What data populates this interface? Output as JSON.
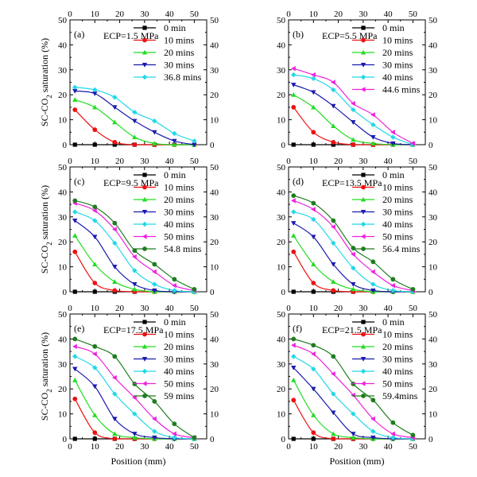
{
  "figure": {
    "xlabel": "Position (mm)",
    "ylabel_main": "SC-CO",
    "ylabel_sub": "2",
    "ylabel_rest": "  saturation (%)"
  },
  "chart_data": [
    {
      "type": "line",
      "panel_label": "(a)",
      "annotation": "ECP=1.5 MPa",
      "x": [
        2,
        10,
        18,
        26,
        34,
        42,
        50
      ],
      "xlim": [
        0,
        55
      ],
      "ylim": [
        0,
        50
      ],
      "xticks": [
        0,
        10,
        20,
        30,
        40,
        50
      ],
      "yticks": [
        0,
        10,
        20,
        30,
        40,
        50
      ],
      "legend_position": "top-right",
      "series": [
        {
          "name": "0 min",
          "color": "#000000",
          "marker": "square",
          "values": [
            0,
            0,
            0,
            0,
            0,
            0,
            0
          ]
        },
        {
          "name": "10 mins",
          "color": "#ee1111",
          "marker": "circle",
          "values": [
            14,
            6,
            1,
            0,
            0,
            0,
            0
          ]
        },
        {
          "name": "20 mins",
          "color": "#22dd22",
          "marker": "triangle-up",
          "values": [
            18,
            15,
            9,
            3,
            0.5,
            0,
            0
          ]
        },
        {
          "name": "30 mins",
          "color": "#1a1ab0",
          "marker": "triangle-down",
          "values": [
            21.5,
            20.5,
            15,
            9.5,
            5,
            1.5,
            0
          ]
        },
        {
          "name": "36.8 mins",
          "color": "#22d8e8",
          "marker": "diamond",
          "values": [
            23,
            22,
            19,
            13,
            9.5,
            4.5,
            1.5
          ]
        }
      ]
    },
    {
      "type": "line",
      "panel_label": "(b)",
      "annotation": "ECP=5.5 MPa",
      "x": [
        2,
        10,
        18,
        26,
        34,
        42,
        50
      ],
      "xlim": [
        0,
        55
      ],
      "ylim": [
        0,
        50
      ],
      "xticks": [
        0,
        10,
        20,
        30,
        40,
        50
      ],
      "yticks": [
        0,
        10,
        20,
        30,
        40,
        50
      ],
      "legend_position": "top-right",
      "series": [
        {
          "name": "0 min",
          "color": "#000000",
          "marker": "square",
          "values": [
            0,
            0,
            0,
            0,
            0,
            0,
            0
          ]
        },
        {
          "name": "10 mins",
          "color": "#ee1111",
          "marker": "circle",
          "values": [
            15,
            5,
            1,
            0,
            0,
            0,
            0
          ]
        },
        {
          "name": "20 mins",
          "color": "#22dd22",
          "marker": "triangle-up",
          "values": [
            20,
            15,
            7.5,
            2,
            0.5,
            0,
            0
          ]
        },
        {
          "name": "30 mins",
          "color": "#1a1ab0",
          "marker": "triangle-down",
          "values": [
            24,
            21,
            15.5,
            9,
            3,
            0.5,
            0
          ]
        },
        {
          "name": "40 mins",
          "color": "#22d8e8",
          "marker": "diamond",
          "values": [
            28,
            26.5,
            22,
            14,
            8,
            3,
            0
          ]
        },
        {
          "name": "44.6 mins",
          "color": "#ee22dd",
          "marker": "triangle-left",
          "values": [
            30.5,
            28,
            25,
            16.5,
            12,
            5,
            0.5
          ]
        }
      ]
    },
    {
      "type": "line",
      "panel_label": "(c)",
      "annotation": "ECP=9.5 MPa",
      "x": [
        2,
        10,
        18,
        26,
        34,
        42,
        50
      ],
      "xlim": [
        0,
        55
      ],
      "ylim": [
        0,
        50
      ],
      "xticks": [
        0,
        10,
        20,
        30,
        40,
        50
      ],
      "yticks": [
        0,
        10,
        20,
        30,
        40,
        50
      ],
      "legend_position": "top-right",
      "series": [
        {
          "name": "0 min",
          "color": "#000000",
          "marker": "square",
          "values": [
            0,
            0,
            0,
            0,
            0,
            0,
            0
          ]
        },
        {
          "name": "10 mins",
          "color": "#ee1111",
          "marker": "circle",
          "values": [
            16,
            3.5,
            0.5,
            0,
            0,
            0,
            0
          ]
        },
        {
          "name": "20 mins",
          "color": "#22dd22",
          "marker": "triangle-up",
          "values": [
            22.5,
            11,
            4,
            1,
            0,
            0,
            0
          ]
        },
        {
          "name": "30 mins",
          "color": "#1a1ab0",
          "marker": "triangle-down",
          "values": [
            28.5,
            22,
            10,
            3,
            0.5,
            0,
            0
          ]
        },
        {
          "name": "40 mins",
          "color": "#22d8e8",
          "marker": "diamond",
          "values": [
            32,
            28.5,
            19.5,
            8.5,
            3,
            0.5,
            0
          ]
        },
        {
          "name": "50 mins",
          "color": "#ee22dd",
          "marker": "triangle-left",
          "values": [
            35.5,
            32.5,
            25,
            14,
            8,
            2.5,
            0.5
          ]
        },
        {
          "name": "54.8 mins",
          "color": "#1e7d1e",
          "marker": "circle",
          "values": [
            36.5,
            34,
            27.5,
            16.5,
            11,
            5,
            1
          ]
        }
      ]
    },
    {
      "type": "line",
      "panel_label": "(d)",
      "annotation": "ECP=13.5 MPa",
      "x": [
        2,
        10,
        18,
        26,
        34,
        42,
        50
      ],
      "xlim": [
        0,
        55
      ],
      "ylim": [
        0,
        50
      ],
      "xticks": [
        0,
        10,
        20,
        30,
        40,
        50
      ],
      "yticks": [
        0,
        10,
        20,
        30,
        40,
        50
      ],
      "legend_position": "top-right",
      "series": [
        {
          "name": "0 min",
          "color": "#000000",
          "marker": "square",
          "values": [
            0,
            0,
            0,
            0,
            0,
            0,
            0
          ]
        },
        {
          "name": "10 mins",
          "color": "#ee1111",
          "marker": "circle",
          "values": [
            16,
            3.5,
            0.5,
            0,
            0,
            0,
            0
          ]
        },
        {
          "name": "20 mins",
          "color": "#22dd22",
          "marker": "triangle-up",
          "values": [
            22.5,
            11,
            4,
            1,
            0,
            0,
            0
          ]
        },
        {
          "name": "30 mins",
          "color": "#1a1ab0",
          "marker": "triangle-down",
          "values": [
            27.5,
            22,
            11,
            3,
            0.5,
            0,
            0
          ]
        },
        {
          "name": "40 mins",
          "color": "#22d8e8",
          "marker": "diamond",
          "values": [
            32,
            29,
            19.5,
            9.5,
            3,
            0.5,
            0
          ]
        },
        {
          "name": "50 mins",
          "color": "#ee22dd",
          "marker": "triangle-left",
          "values": [
            36.5,
            33,
            26,
            15,
            8,
            2.5,
            0.5
          ]
        },
        {
          "name": "56.4 mins",
          "color": "#1e7d1e",
          "marker": "circle",
          "values": [
            38.5,
            35.5,
            28.5,
            17.5,
            12,
            5,
            1
          ]
        }
      ]
    },
    {
      "type": "line",
      "panel_label": "(e)",
      "annotation": "ECP=17.5 MPa",
      "x": [
        2,
        10,
        18,
        26,
        34,
        42,
        50
      ],
      "xlim": [
        0,
        55
      ],
      "ylim": [
        0,
        50
      ],
      "xticks": [
        0,
        10,
        20,
        30,
        40,
        50
      ],
      "yticks": [
        0,
        10,
        20,
        30,
        40,
        50
      ],
      "legend_position": "top-right",
      "series": [
        {
          "name": "0 min",
          "color": "#000000",
          "marker": "square",
          "values": [
            0,
            0,
            0,
            0,
            0,
            0,
            0
          ]
        },
        {
          "name": "10 mins",
          "color": "#ee1111",
          "marker": "circle",
          "values": [
            16,
            2.5,
            0,
            0,
            0,
            0,
            0
          ]
        },
        {
          "name": "20 mins",
          "color": "#22dd22",
          "marker": "triangle-up",
          "values": [
            23.5,
            9.5,
            2,
            0.5,
            0,
            0,
            0
          ]
        },
        {
          "name": "30 mins",
          "color": "#1a1ab0",
          "marker": "triangle-down",
          "values": [
            28,
            21,
            8,
            2,
            0.5,
            0,
            0
          ]
        },
        {
          "name": "40 mins",
          "color": "#22d8e8",
          "marker": "diamond",
          "values": [
            33,
            28.5,
            18,
            10,
            3,
            0.5,
            0
          ]
        },
        {
          "name": "50 mins",
          "color": "#ee22dd",
          "marker": "triangle-left",
          "values": [
            37,
            34,
            24.5,
            16.5,
            8,
            2,
            0.5
          ]
        },
        {
          "name": "59 mins",
          "color": "#1e7d1e",
          "marker": "circle",
          "values": [
            40,
            37,
            33,
            22,
            15,
            6,
            0.5
          ]
        }
      ]
    },
    {
      "type": "line",
      "panel_label": "(f)",
      "annotation": "ECP=21.5 MPa",
      "x": [
        2,
        10,
        18,
        26,
        34,
        42,
        50
      ],
      "xlim": [
        0,
        55
      ],
      "ylim": [
        0,
        50
      ],
      "xticks": [
        0,
        10,
        20,
        30,
        40,
        50
      ],
      "yticks": [
        0,
        10,
        20,
        30,
        40,
        50
      ],
      "legend_position": "top-right",
      "series": [
        {
          "name": "0 min",
          "color": "#000000",
          "marker": "square",
          "values": [
            0,
            0,
            0,
            0,
            0,
            0,
            0
          ]
        },
        {
          "name": "10 mins",
          "color": "#ee1111",
          "marker": "circle",
          "values": [
            15.5,
            2.5,
            0,
            0,
            0,
            0,
            0
          ]
        },
        {
          "name": "20 mins",
          "color": "#22dd22",
          "marker": "triangle-up",
          "values": [
            23.5,
            9.5,
            2,
            0.5,
            0,
            0,
            0
          ]
        },
        {
          "name": "30 mins",
          "color": "#1a1ab0",
          "marker": "triangle-down",
          "values": [
            28.5,
            20,
            10.5,
            2,
            0.5,
            0,
            0
          ]
        },
        {
          "name": "40 mins",
          "color": "#22d8e8",
          "marker": "diamond",
          "values": [
            33,
            28,
            18,
            10,
            3,
            0.5,
            0
          ]
        },
        {
          "name": "50 mins",
          "color": "#ee22dd",
          "marker": "triangle-left",
          "values": [
            37.5,
            34,
            26,
            17.5,
            8,
            2,
            0.5
          ]
        },
        {
          "name": "59.4mins",
          "color": "#1e7d1e",
          "marker": "circle",
          "values": [
            40,
            37.5,
            33,
            22,
            15.5,
            6.5,
            1.5
          ]
        }
      ]
    }
  ]
}
